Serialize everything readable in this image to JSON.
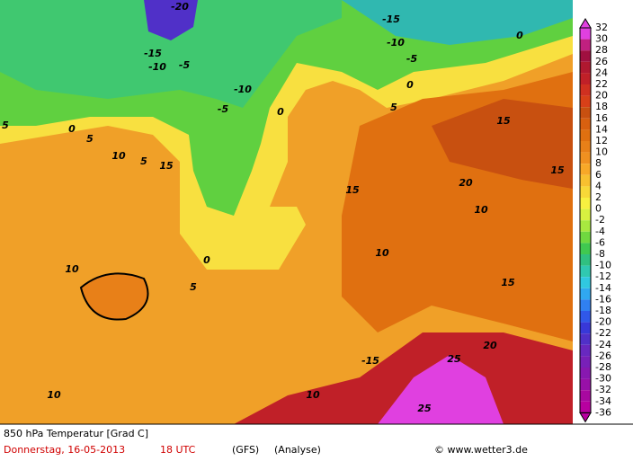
{
  "map": {
    "footer": {
      "title": "850 hPa Temperatur [Grad C]",
      "date": "Donnerstag, 16-05-2013",
      "time": "18 UTC",
      "model": "(GFS)",
      "run": "(Analyse)",
      "credit": "© www.wetter3.de"
    },
    "colorbar": {
      "ticks": [
        32,
        30,
        28,
        26,
        24,
        22,
        20,
        18,
        16,
        14,
        12,
        10,
        8,
        6,
        4,
        2,
        0,
        -2,
        -4,
        -6,
        -8,
        -10,
        -12,
        -14,
        -16,
        -18,
        -20,
        -22,
        -24,
        -26,
        -28,
        -30,
        -32,
        -34,
        -36
      ],
      "colors": [
        "#e040e0",
        "#c02080",
        "#a01040",
        "#b01830",
        "#c02028",
        "#d03020",
        "#d84018",
        "#c85010",
        "#d86010",
        "#e07010",
        "#e88018",
        "#f09020",
        "#f8a828",
        "#f8c030",
        "#f8d838",
        "#f8f040",
        "#d8f040",
        "#a8e840",
        "#70d840",
        "#40c850",
        "#30c080",
        "#30c8b0",
        "#30c8e0",
        "#30a8f0",
        "#3080f0",
        "#3058e8",
        "#3838d8",
        "#5030c8",
        "#6828c0",
        "#7820b8",
        "#8818b0",
        "#9810a8",
        "#a808a0",
        "#b800a0"
      ]
    },
    "contour_labels": [
      "-20",
      "-15",
      "-10",
      "-5",
      "0",
      "5",
      "10",
      "15",
      "-15",
      "-10",
      "-5",
      "0",
      "5",
      "10",
      "15",
      "20",
      "25",
      "25",
      "-10",
      "-5",
      "0",
      "5",
      "10",
      "15",
      "10",
      "5",
      "0",
      "-15",
      "10",
      "15",
      "20",
      "0",
      "5",
      "10",
      "15"
    ]
  }
}
